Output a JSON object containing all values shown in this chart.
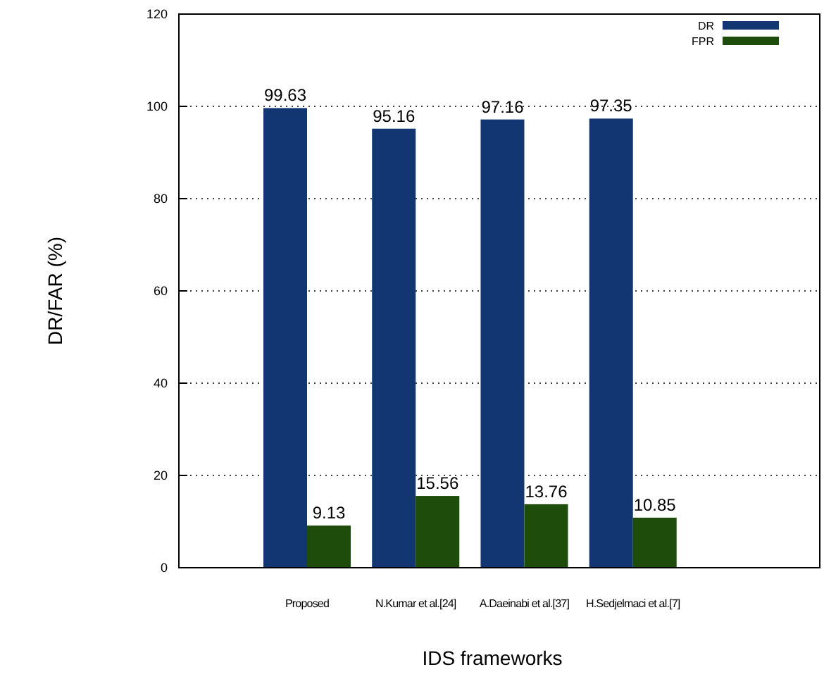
{
  "chart_data": {
    "type": "bar",
    "xlabel": "IDS frameworks",
    "ylabel": "DR/FAR (%)",
    "categories": [
      "Proposed",
      "N.Kumar et al.[24]",
      "A.Daeinabi et al.[37]",
      "H.Sedjelmaci et al.[7]"
    ],
    "series": [
      {
        "name": "DR",
        "color": "#123672",
        "values": [
          99.63,
          95.16,
          97.16,
          97.35
        ]
      },
      {
        "name": "FPR",
        "color": "#1e4d0b",
        "values": [
          9.13,
          15.56,
          13.76,
          10.85
        ]
      }
    ],
    "ylim": [
      0,
      120
    ],
    "yticks": [
      0,
      20,
      40,
      60,
      80,
      100,
      120
    ],
    "grid": "y",
    "legend": "top right",
    "data_labels": true
  }
}
